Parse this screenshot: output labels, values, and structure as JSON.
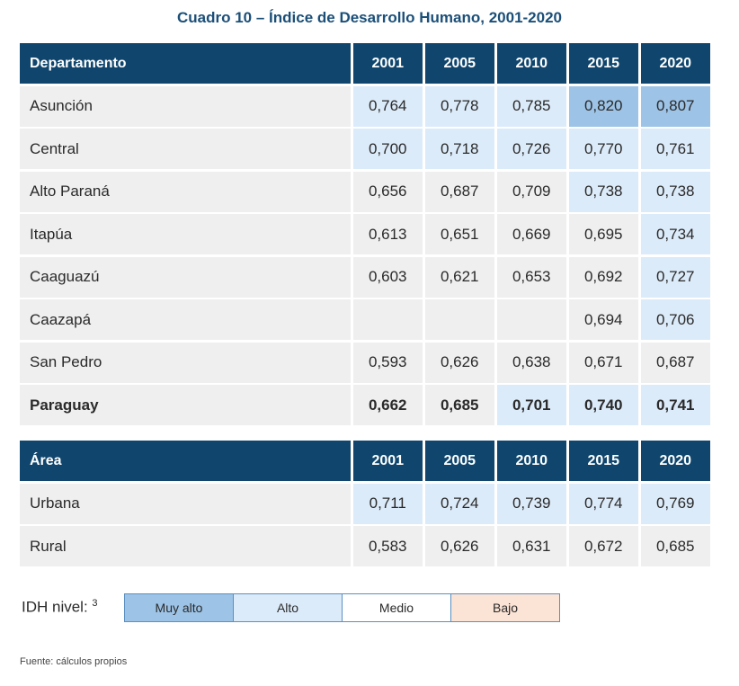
{
  "title": "Cuadro 10 – Índice de Desarrollo Humano, 2001-2020",
  "colors": {
    "header_bg": "#10466d",
    "muy_alto": "#9dc3e6",
    "alto": "#dcebf9",
    "medio": "#ffffff",
    "bajo": "#fbe3d5",
    "no_level": "#efefef"
  },
  "table1": {
    "header": [
      "Departamento",
      "2001",
      "2005",
      "2010",
      "2015",
      "2020"
    ],
    "rows": [
      {
        "label": "Asunción",
        "values": [
          "0,764",
          "0,778",
          "0,785",
          "0,820",
          "0,807"
        ],
        "levels": [
          "alto",
          "alto",
          "alto",
          "muy alto",
          "muy alto"
        ]
      },
      {
        "label": "Central",
        "values": [
          "0,700",
          "0,718",
          "0,726",
          "0,770",
          "0,761"
        ],
        "levels": [
          "alto",
          "alto",
          "alto",
          "alto",
          "alto"
        ]
      },
      {
        "label": "Alto Paraná",
        "values": [
          "0,656",
          "0,687",
          "0,709",
          "0,738",
          "0,738"
        ],
        "levels": [
          "",
          "",
          "",
          "alto",
          "alto"
        ]
      },
      {
        "label": "Itapúa",
        "values": [
          "0,613",
          "0,651",
          "0,669",
          "0,695",
          "0,734"
        ],
        "levels": [
          "",
          "",
          "",
          "",
          "alto"
        ]
      },
      {
        "label": "Caaguazú",
        "values": [
          "0,603",
          "0,621",
          "0,653",
          "0,692",
          "0,727"
        ],
        "levels": [
          "",
          "",
          "",
          "",
          "alto"
        ]
      },
      {
        "label": "Caazapá",
        "values": [
          "",
          "",
          "",
          "0,694",
          "0,706"
        ],
        "levels": [
          "",
          "",
          "",
          "",
          "alto"
        ]
      },
      {
        "label": "San Pedro",
        "values": [
          "0,593",
          "0,626",
          "0,638",
          "0,671",
          "0,687"
        ],
        "levels": [
          "",
          "",
          "",
          "",
          ""
        ]
      },
      {
        "label": "Paraguay",
        "values": [
          "0,662",
          "0,685",
          "0,701",
          "0,740",
          "0,741"
        ],
        "levels": [
          "",
          "",
          "alto",
          "alto",
          "alto"
        ],
        "bold": true
      }
    ]
  },
  "table2": {
    "header": [
      "Área",
      "2001",
      "2005",
      "2010",
      "2015",
      "2020"
    ],
    "rows": [
      {
        "label": "Urbana",
        "values": [
          "0,711",
          "0,724",
          "0,739",
          "0,774",
          "0,769"
        ],
        "levels": [
          "alto",
          "alto",
          "alto",
          "alto",
          "alto"
        ]
      },
      {
        "label": "Rural",
        "values": [
          "0,583",
          "0,626",
          "0,631",
          "0,672",
          "0,685"
        ],
        "levels": [
          "",
          "",
          "",
          "",
          ""
        ]
      }
    ]
  },
  "legend": {
    "label": "IDH nivel:",
    "footnote": "3",
    "items": [
      {
        "label": "Muy alto",
        "level": "muy alto"
      },
      {
        "label": "Alto",
        "level": "alto"
      },
      {
        "label": "Medio",
        "level": "medio"
      },
      {
        "label": "Bajo",
        "level": "bajo"
      }
    ]
  },
  "source": "Fuente: cálculos propios"
}
